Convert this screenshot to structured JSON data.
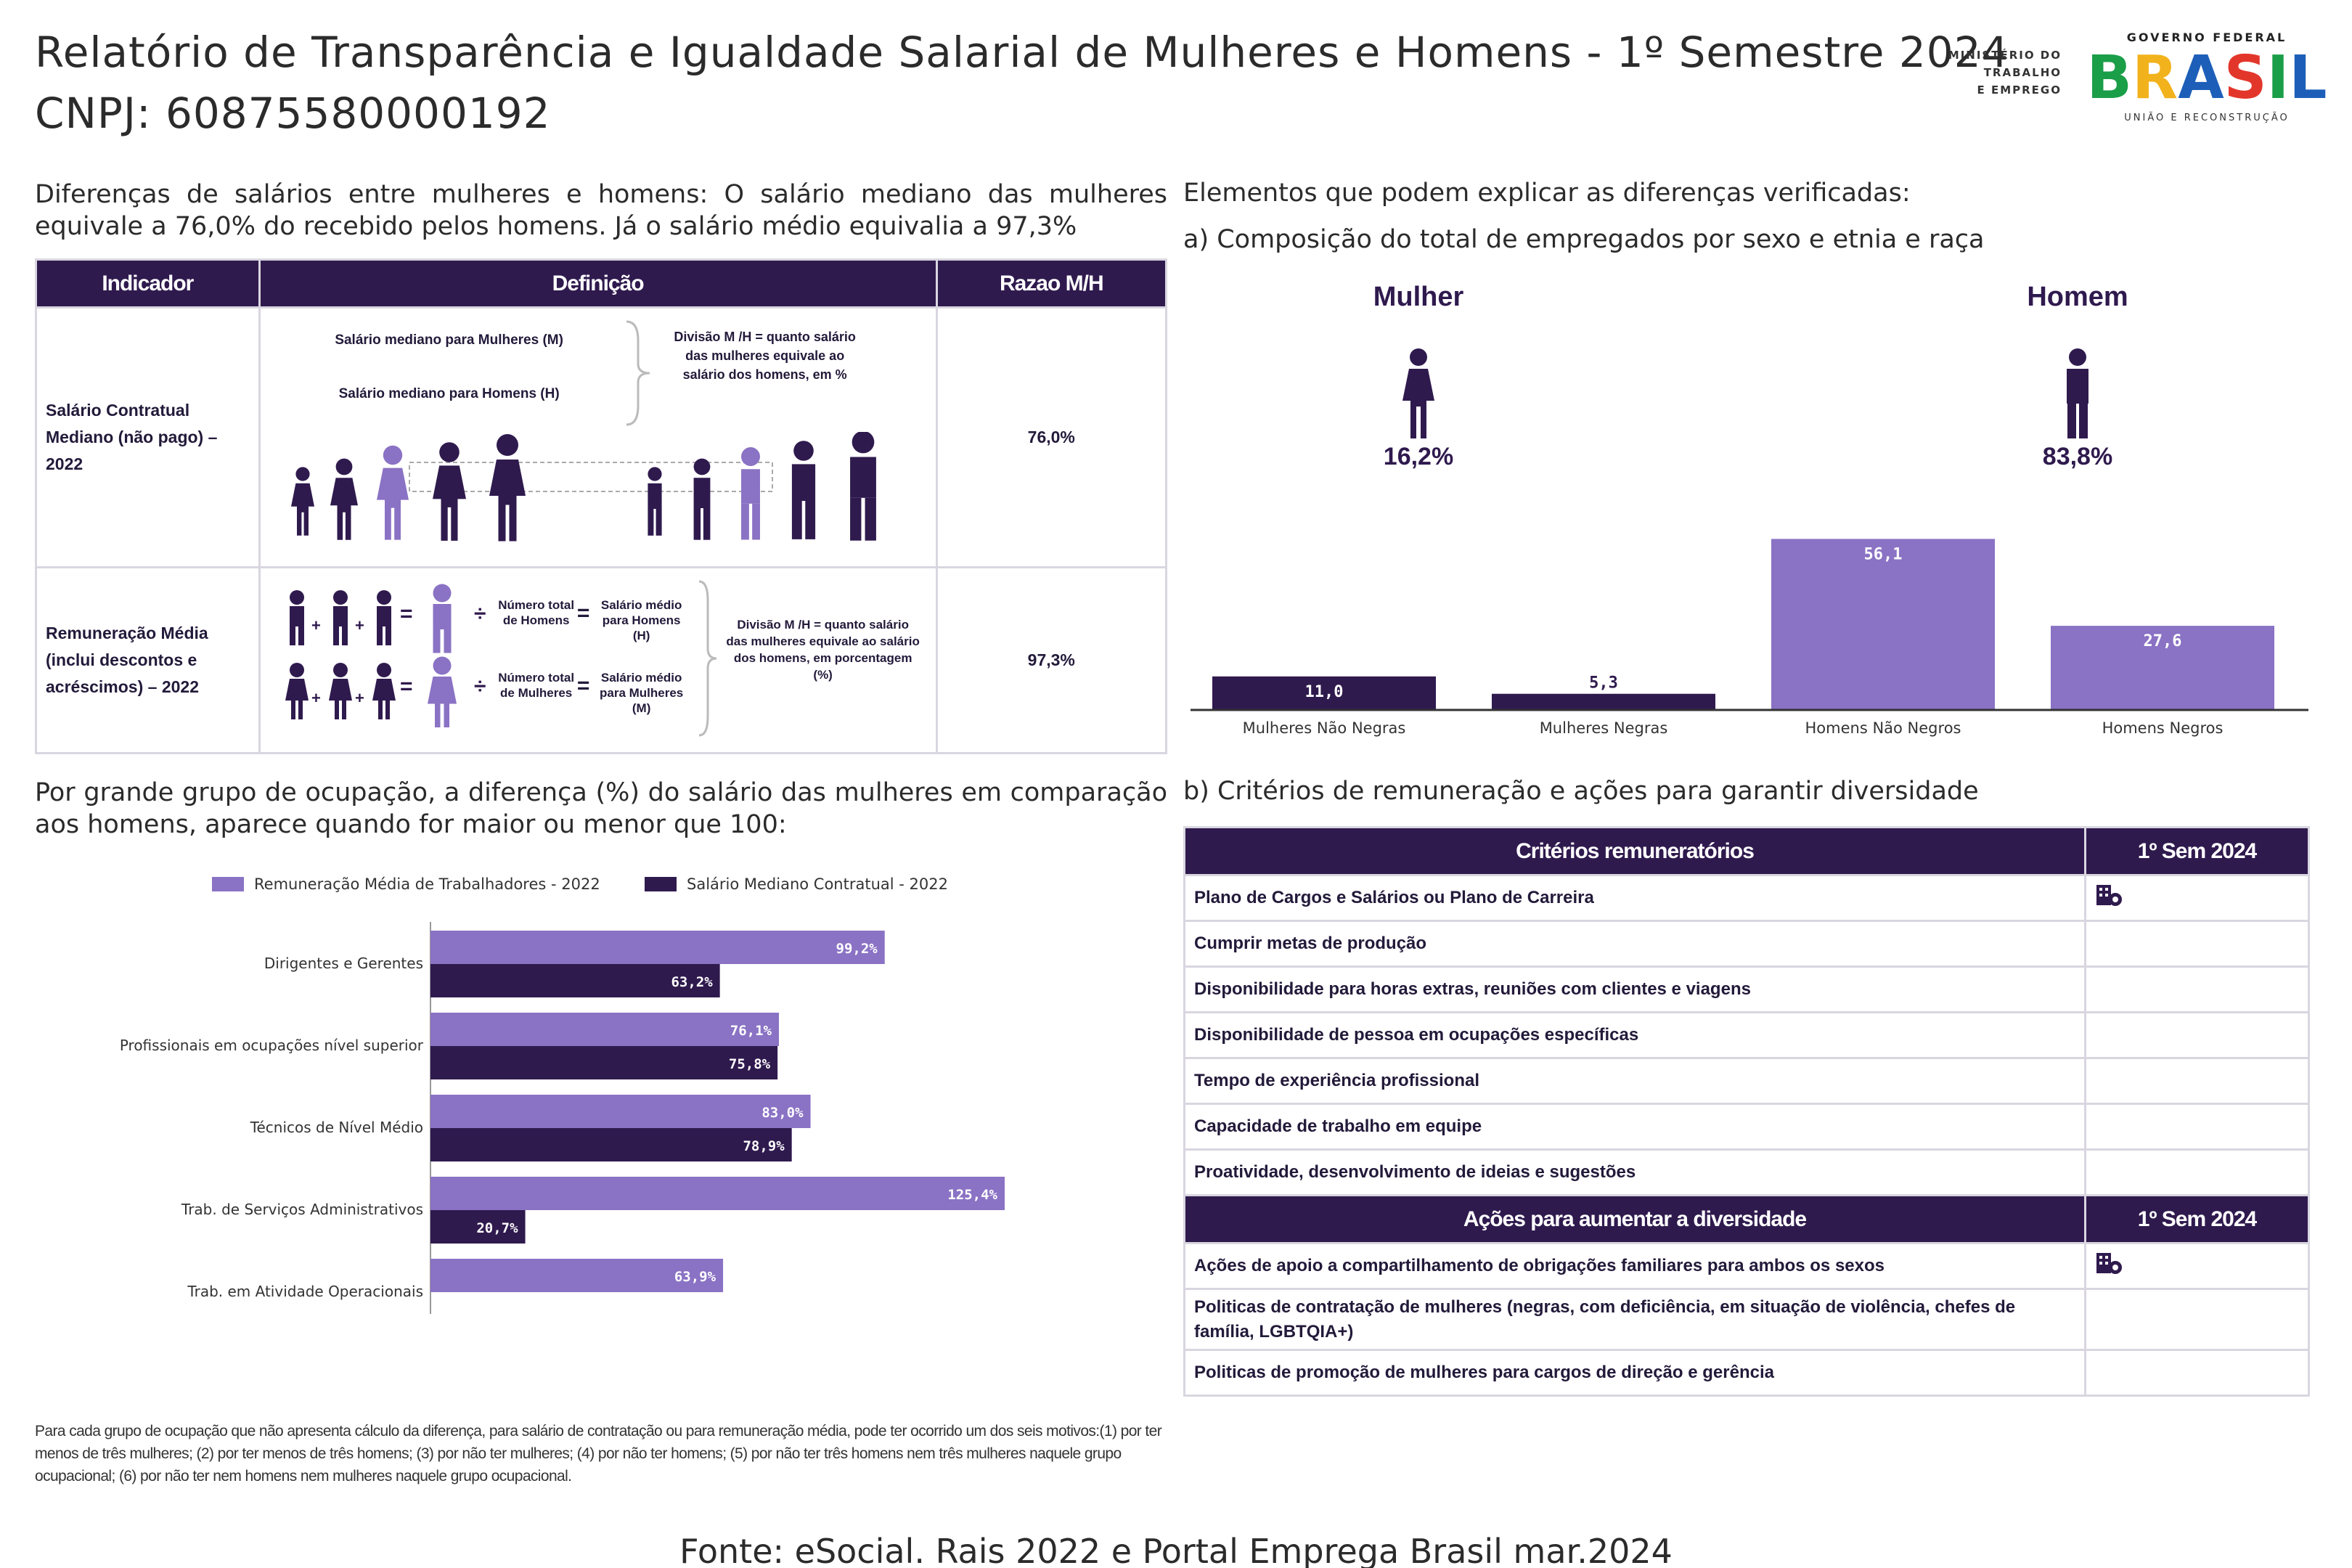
{
  "header": {
    "title": "Relatório de Transparência e Igualdade Salarial de Mulheres e Homens - 1º Semestre 2024",
    "cnpj": "CNPJ: 60875580000192",
    "ministry": [
      "MINISTÉRIO DO",
      "TRABALHO",
      "E EMPREGO"
    ],
    "gov_top": "GOVERNO FEDERAL",
    "gov_word": "BRASIL",
    "gov_bottom": "UNIÃO E RECONSTRUÇÃO"
  },
  "intro": "Diferenças de salários entre mulheres e homens: O salário mediano das mulheres equivale a 76,0% do recebido pelos homens. Já o salário médio equivalia a 97,3%",
  "indicator_table": {
    "headers": [
      "Indicador",
      "Definição",
      "Razao M/H"
    ],
    "row1": {
      "indicator": "Salário Contratual Mediano (não pago) – 2022",
      "def_women": "Salário mediano para Mulheres (M)",
      "def_men": "Salário mediano para Homens (H)",
      "def_division": "Divisão M /H = quanto salário das mulheres equivale ao salário dos homens, em %",
      "ratio": "76,0%"
    },
    "row2": {
      "indicator": "Remuneração Média (inclui descontos e acréscimos) – 2022",
      "num_men": "Número total de Homens",
      "num_women": "Número total de Mulheres",
      "avg_men": "Salário médio para Homens (H)",
      "avg_women": "Salário médio para Mulheres (M)",
      "division": "Divisão M /H = quanto salário das mulheres equivale ao salário dos homens, em porcentagem (%)",
      "ratio": "97,3%"
    }
  },
  "right_section": {
    "title": "Elementos que podem explicar as diferenças verificadas:",
    "subtitle_a": "a) Composição do total de empregados por sexo e etnia e raça",
    "woman_label": "Mulher",
    "woman_pct": "16,2%",
    "man_label": "Homem",
    "man_pct": "83,8%",
    "subtitle_b": "b) Critérios de remuneração e ações para garantir diversidade"
  },
  "occupation": {
    "title": "Por grande grupo de ocupação, a diferença (%) do salário das mulheres em comparação aos homens, aparece quando for maior ou menor que 100:",
    "footnote": "Para cada grupo de ocupação que não apresenta cálculo da diferença, para salário de contratação ou para remuneração média, pode ter ocorrido um dos seis motivos:(1) por ter menos de três mulheres; (2) por ter menos de três homens; (3) por não ter mulheres; (4) por não ter homens; (5) por não ter três homens nem três mulheres naquele grupo ocupacional; (6) por não ter nem homens nem mulheres naquele grupo ocupacional."
  },
  "criteria_table": {
    "header_criteria": "Critérios remuneratórios",
    "header_sem": "1º Sem 2024",
    "criteria": [
      {
        "label": "Plano de Cargos e Salários ou Plano de Carreira",
        "checked": true
      },
      {
        "label": "Cumprir metas de produção",
        "checked": false
      },
      {
        "label": "Disponibilidade para horas extras, reuniões com clientes e viagens",
        "checked": false
      },
      {
        "label": "Disponibilidade de pessoa em ocupações específicas",
        "checked": false
      },
      {
        "label": "Tempo de experiência profissional",
        "checked": false
      },
      {
        "label": "Capacidade de trabalho em equipe",
        "checked": false
      },
      {
        "label": "Proatividade, desenvolvimento de ideias e sugestões",
        "checked": false
      }
    ],
    "header_actions": "Ações para aumentar a diversidade",
    "header_sem2": "1º Sem 2024",
    "actions": [
      {
        "label": "Ações de apoio a compartilhamento de obrigações familiares para ambos os sexos",
        "checked": true
      },
      {
        "label": "Politicas de contratação de mulheres (negras, com deficiência, em situação de violência, chefes de família, LGBTQIA+)",
        "checked": false
      },
      {
        "label": "Politicas de promoção de mulheres para cargos de direção e gerência",
        "checked": false
      }
    ]
  },
  "source": "Fonte: eSocial. Rais 2022 e Portal Emprega Brasil mar.2024",
  "colors": {
    "dark": "#2f1a4e",
    "light": "#8a72c4",
    "border": "#d9d6e0"
  },
  "chart_data": [
    {
      "type": "bar",
      "categories": [
        "Mulheres Não Negras",
        "Mulheres Negras",
        "Homens Não Negros",
        "Homens Negros"
      ],
      "values": [
        11.0,
        5.3,
        56.1,
        27.6
      ],
      "labels": [
        "11,0",
        "5,3",
        "56,1",
        "27,6"
      ],
      "colors": [
        "#2f1a4e",
        "#2f1a4e",
        "#8a72c4",
        "#8a72c4"
      ],
      "ylim": [
        0,
        60
      ],
      "grid": false
    },
    {
      "type": "bar",
      "orientation": "horizontal",
      "categories": [
        "Dirigentes e Gerentes",
        "Profissionais em ocupações nível superior",
        "Técnicos de Nível Médio",
        "Trab. de Serviços Administrativos",
        "Trab. em Atividade Operacionais"
      ],
      "series": [
        {
          "name": "Remuneração Média de Trabalhadores - 2022",
          "values": [
            99.2,
            76.1,
            83.0,
            125.4,
            63.9
          ],
          "labels": [
            "99,2%",
            "76,1%",
            "83,0%",
            "125,4%",
            "63,9%"
          ],
          "color": "#8a72c4"
        },
        {
          "name": "Salário Mediano Contratual - 2022",
          "values": [
            63.2,
            75.8,
            78.9,
            20.7,
            null
          ],
          "labels": [
            "63,2%",
            "75,8%",
            "78,9%",
            "20,7%",
            ""
          ],
          "color": "#2f1a4e"
        }
      ],
      "xlim": [
        0,
        130
      ],
      "legend": "top",
      "grid": false
    }
  ]
}
